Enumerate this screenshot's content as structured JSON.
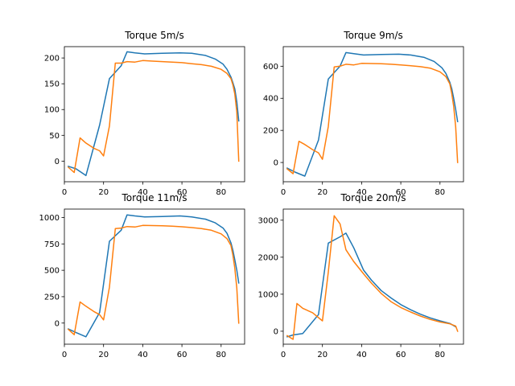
{
  "chart_data": [
    {
      "type": "line",
      "title": "Torque 5m/s",
      "xlim": [
        0,
        92
      ],
      "ylim": [
        -40,
        222
      ],
      "xticks": [
        0,
        20,
        40,
        60,
        80
      ],
      "yticks": [
        0,
        50,
        100,
        150,
        200
      ],
      "series": [
        {
          "color": "#1f77b4",
          "x": [
            2,
            6,
            11,
            18,
            23,
            29,
            32,
            36,
            41,
            50,
            59,
            65,
            72,
            77,
            81,
            83,
            85,
            86,
            87,
            88,
            89
          ],
          "y": [
            -10,
            -15,
            -28,
            70,
            160,
            185,
            212,
            210,
            208,
            209,
            210,
            209,
            205,
            198,
            188,
            178,
            163,
            152,
            140,
            115,
            78
          ]
        },
        {
          "color": "#ff7f0e",
          "x": [
            2,
            5,
            8,
            11,
            15,
            18,
            20,
            23,
            26,
            29,
            32,
            36,
            40,
            45,
            50,
            55,
            60,
            65,
            70,
            75,
            80,
            83,
            85,
            86,
            87,
            88,
            89
          ],
          "y": [
            -12,
            -22,
            45,
            35,
            25,
            20,
            10,
            68,
            190,
            190,
            193,
            192,
            195,
            194,
            193,
            192,
            191,
            189,
            187,
            184,
            178,
            170,
            160,
            148,
            130,
            95,
            0
          ]
        }
      ]
    },
    {
      "type": "line",
      "title": "Torque 9m/s",
      "xlim": [
        0,
        92
      ],
      "ylim": [
        -120,
        722
      ],
      "xticks": [
        0,
        20,
        40,
        60,
        80
      ],
      "yticks": [
        0,
        200,
        400,
        600
      ],
      "series": [
        {
          "color": "#1f77b4",
          "x": [
            2,
            6,
            11,
            18,
            23,
            29,
            32,
            36,
            41,
            50,
            59,
            65,
            72,
            77,
            81,
            83,
            85,
            86,
            87,
            88,
            89
          ],
          "y": [
            -35,
            -60,
            -85,
            140,
            520,
            600,
            685,
            678,
            670,
            673,
            675,
            670,
            655,
            630,
            590,
            555,
            500,
            460,
            400,
            330,
            255
          ]
        },
        {
          "color": "#ff7f0e",
          "x": [
            2,
            5,
            8,
            11,
            15,
            18,
            20,
            23,
            26,
            29,
            32,
            36,
            40,
            45,
            50,
            55,
            60,
            65,
            70,
            75,
            80,
            83,
            85,
            86,
            87,
            88,
            89
          ],
          "y": [
            -40,
            -70,
            132,
            112,
            80,
            60,
            20,
            225,
            595,
            600,
            612,
            608,
            618,
            617,
            615,
            612,
            608,
            603,
            597,
            588,
            565,
            535,
            490,
            430,
            350,
            220,
            0
          ]
        }
      ]
    },
    {
      "type": "line",
      "title": "Torque 11m/s",
      "xlim": [
        0,
        92
      ],
      "ylim": [
        -200,
        1080
      ],
      "xticks": [
        0,
        20,
        40,
        60,
        80
      ],
      "yticks": [
        0,
        250,
        500,
        750,
        1000
      ],
      "series": [
        {
          "color": "#1f77b4",
          "x": [
            2,
            6,
            11,
            18,
            23,
            29,
            32,
            36,
            41,
            50,
            59,
            65,
            72,
            77,
            81,
            83,
            85,
            86,
            87,
            88,
            89
          ],
          "y": [
            -55,
            -90,
            -130,
            100,
            775,
            880,
            1025,
            1015,
            1005,
            1010,
            1015,
            1005,
            985,
            950,
            900,
            850,
            760,
            690,
            600,
            500,
            380
          ]
        },
        {
          "color": "#ff7f0e",
          "x": [
            2,
            5,
            8,
            11,
            15,
            18,
            20,
            23,
            26,
            29,
            32,
            36,
            40,
            45,
            50,
            55,
            60,
            65,
            70,
            75,
            80,
            83,
            85,
            86,
            87,
            88,
            89
          ],
          "y": [
            -60,
            -110,
            200,
            160,
            110,
            80,
            30,
            340,
            895,
            900,
            915,
            910,
            925,
            924,
            922,
            918,
            912,
            905,
            895,
            880,
            845,
            800,
            735,
            645,
            520,
            330,
            0
          ]
        }
      ]
    },
    {
      "type": "line",
      "title": "Torque 20m/s",
      "xlim": [
        0,
        92
      ],
      "ylim": [
        -350,
        3300
      ],
      "xticks": [
        0,
        20,
        40,
        60,
        80
      ],
      "yticks": [
        0,
        1000,
        2000,
        3000
      ],
      "series": [
        {
          "color": "#1f77b4",
          "x": [
            2,
            5,
            10,
            18,
            23,
            29,
            32,
            36,
            41,
            45,
            50,
            55,
            60,
            65,
            70,
            75,
            80,
            85,
            88
          ],
          "y": [
            -150,
            -100,
            -60,
            450,
            2380,
            2550,
            2650,
            2250,
            1650,
            1380,
            1100,
            900,
            720,
            580,
            460,
            360,
            280,
            210,
            120
          ]
        },
        {
          "color": "#ff7f0e",
          "x": [
            2,
            5,
            7,
            10,
            15,
            20,
            23,
            26,
            29,
            32,
            36,
            41,
            45,
            50,
            55,
            60,
            65,
            70,
            75,
            80,
            85,
            88,
            89
          ],
          "y": [
            -120,
            -220,
            750,
            620,
            500,
            280,
            1600,
            3120,
            2900,
            2200,
            1880,
            1550,
            1300,
            1020,
            800,
            640,
            520,
            410,
            320,
            250,
            200,
            140,
            0
          ]
        }
      ]
    }
  ]
}
